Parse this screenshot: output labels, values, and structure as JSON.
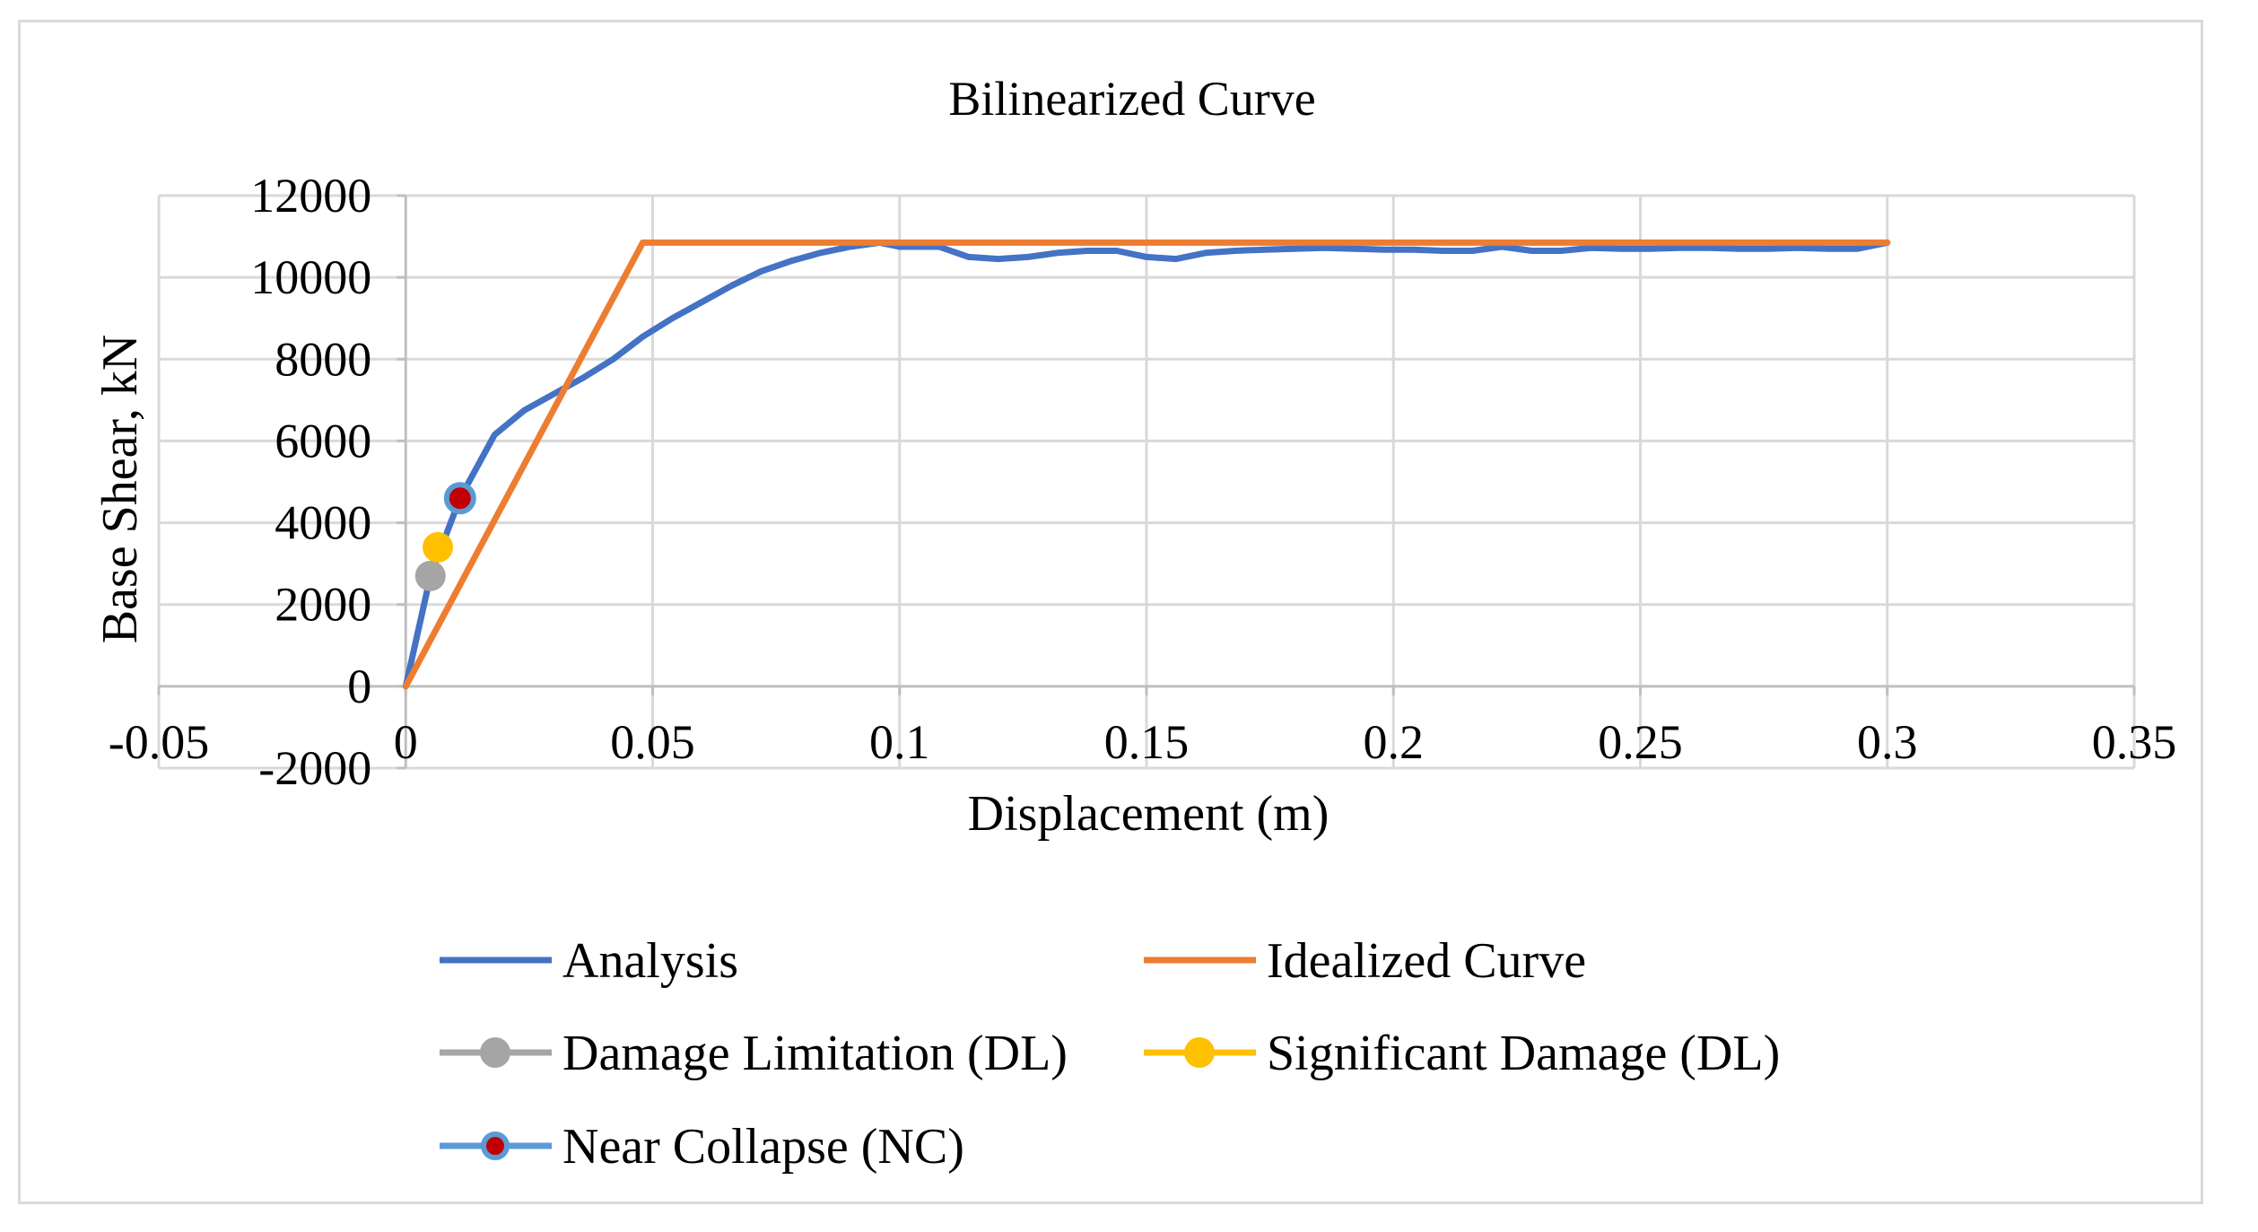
{
  "chart_data": {
    "type": "scatter",
    "title": "Bilinearized Curve",
    "xlabel": "Displacement (m)",
    "ylabel": "Base Shear, kN",
    "xlim": [
      -0.05,
      0.35
    ],
    "ylim": [
      -2000,
      12000
    ],
    "x_ticks": [
      -0.05,
      0,
      0.05,
      0.1,
      0.15,
      0.2,
      0.25,
      0.3,
      0.35
    ],
    "x_tick_labels": [
      "-0.05",
      "0",
      "0.05",
      "0.1",
      "0.15",
      "0.2",
      "0.25",
      "0.3",
      "0.35"
    ],
    "y_ticks": [
      -2000,
      0,
      2000,
      4000,
      6000,
      8000,
      10000,
      12000
    ],
    "y_tick_labels": [
      "-2000",
      "0",
      "2000",
      "4000",
      "6000",
      "8000",
      "10000",
      "12000"
    ],
    "grid": true,
    "legend_position": "bottom",
    "series": [
      {
        "name": "Analysis",
        "kind": "line",
        "color": "#4472c4",
        "x": [
          0,
          0.005,
          0.011,
          0.018,
          0.024,
          0.03,
          0.036,
          0.042,
          0.048,
          0.054,
          0.06,
          0.066,
          0.072,
          0.078,
          0.084,
          0.09,
          0.096,
          0.1,
          0.108,
          0.114,
          0.12,
          0.126,
          0.132,
          0.138,
          0.144,
          0.15,
          0.156,
          0.162,
          0.168,
          0.174,
          0.18,
          0.186,
          0.192,
          0.198,
          0.204,
          0.21,
          0.216,
          0.222,
          0.228,
          0.234,
          0.24,
          0.246,
          0.252,
          0.258,
          0.264,
          0.27,
          0.276,
          0.282,
          0.288,
          0.294,
          0.3
        ],
        "y": [
          0,
          2700,
          4600,
          6150,
          6750,
          7150,
          7550,
          8000,
          8550,
          9000,
          9400,
          9800,
          10150,
          10400,
          10600,
          10750,
          10850,
          10750,
          10750,
          10500,
          10450,
          10500,
          10600,
          10650,
          10650,
          10500,
          10450,
          10600,
          10650,
          10680,
          10700,
          10720,
          10700,
          10680,
          10680,
          10650,
          10650,
          10750,
          10650,
          10650,
          10720,
          10700,
          10700,
          10720,
          10720,
          10700,
          10700,
          10720,
          10700,
          10700,
          10850
        ]
      },
      {
        "name": "Idealized Curve",
        "kind": "line",
        "color": "#ed7d31",
        "x": [
          0,
          0.048,
          0.3
        ],
        "y": [
          0,
          10850,
          10850
        ]
      },
      {
        "name": "Damage Limitation (DL)",
        "kind": "marker",
        "color": "#a5a5a5",
        "marker_fill": "#a5a5a5",
        "x": [
          0.005
        ],
        "y": [
          2700
        ]
      },
      {
        "name": "Significant Damage (DL)",
        "kind": "marker",
        "color": "#ffc000",
        "marker_fill": "#ffc000",
        "x": [
          0.0065
        ],
        "y": [
          3400
        ]
      },
      {
        "name": "Near Collapse (NC)",
        "kind": "marker",
        "color": "#5b9bd5",
        "marker_fill": "#c00000",
        "x": [
          0.011
        ],
        "y": [
          4600
        ]
      }
    ]
  }
}
